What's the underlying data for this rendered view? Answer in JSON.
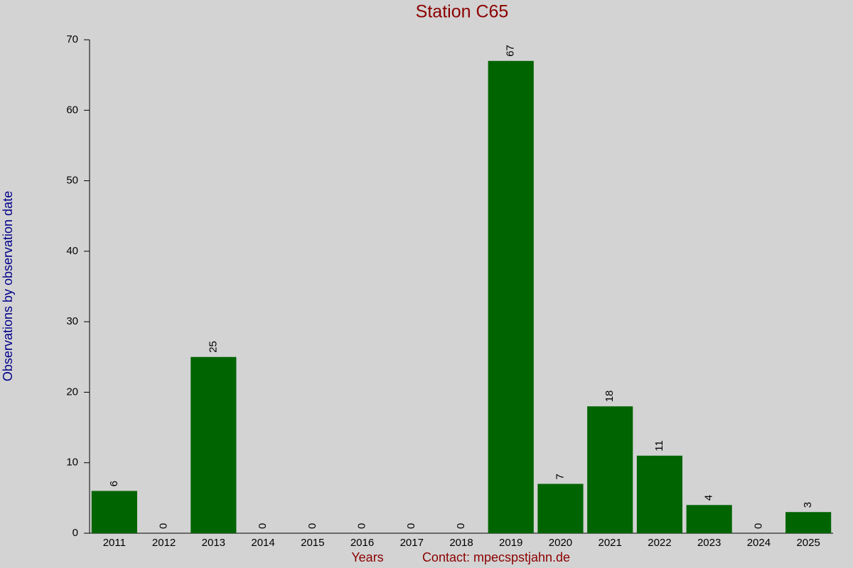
{
  "chart_data": {
    "type": "bar",
    "title": "Station C65",
    "x_label": "Years",
    "y_label": "Observations by observation date",
    "annotation": "Contact: mpecspstjahn.de",
    "categories": [
      "2011",
      "2012",
      "2013",
      "2014",
      "2015",
      "2016",
      "2017",
      "2018",
      "2019",
      "2020",
      "2021",
      "2022",
      "2023",
      "2024",
      "2025"
    ],
    "values": [
      6,
      0,
      25,
      0,
      0,
      0,
      0,
      0,
      67,
      7,
      18,
      11,
      4,
      0,
      3
    ],
    "color": "#006400",
    "ylim": [
      0,
      70
    ],
    "yticks": [
      0,
      10,
      20,
      30,
      40,
      50,
      60,
      70
    ],
    "grid": false
  }
}
